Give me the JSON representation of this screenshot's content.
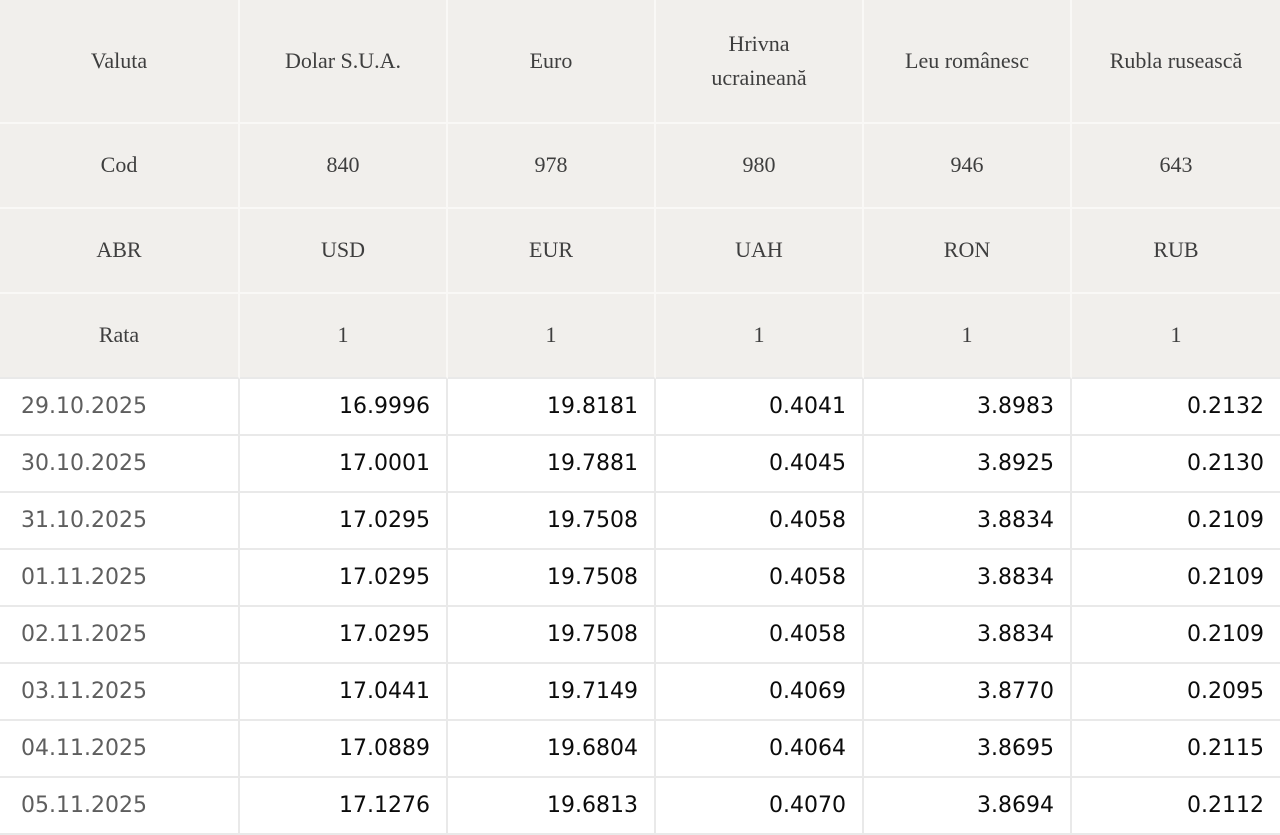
{
  "colors": {
    "page_bg": "#ffffff",
    "header_cell_bg": "#f1efec",
    "header_cell_border": "#f9f8f6",
    "data_cell_border": "#e9e9e9",
    "header_text": "#3e3e3e",
    "date_text": "#5e5e5e",
    "value_text": "#0b0b0b"
  },
  "chart_data": {
    "type": "table",
    "row_labels": {
      "currency": "Valuta",
      "code": "Cod",
      "abbr": "ABR",
      "rate": "Rata"
    },
    "currencies": [
      {
        "name": "Dolar S.U.A.",
        "code": "840",
        "abbr": "USD",
        "rate": "1"
      },
      {
        "name": "Euro",
        "code": "978",
        "abbr": "EUR",
        "rate": "1"
      },
      {
        "name": "Hrivna ucraineană",
        "code": "980",
        "abbr": "UAH",
        "rate": "1"
      },
      {
        "name": "Leu românesc",
        "code": "946",
        "abbr": "RON",
        "rate": "1"
      },
      {
        "name": "Rubla rusească",
        "code": "643",
        "abbr": "RUB",
        "rate": "1"
      }
    ],
    "rows": [
      {
        "date": "29.10.2025",
        "values": [
          "16.9996",
          "19.8181",
          "0.4041",
          "3.8983",
          "0.2132"
        ]
      },
      {
        "date": "30.10.2025",
        "values": [
          "17.0001",
          "19.7881",
          "0.4045",
          "3.8925",
          "0.2130"
        ]
      },
      {
        "date": "31.10.2025",
        "values": [
          "17.0295",
          "19.7508",
          "0.4058",
          "3.8834",
          "0.2109"
        ]
      },
      {
        "date": "01.11.2025",
        "values": [
          "17.0295",
          "19.7508",
          "0.4058",
          "3.8834",
          "0.2109"
        ]
      },
      {
        "date": "02.11.2025",
        "values": [
          "17.0295",
          "19.7508",
          "0.4058",
          "3.8834",
          "0.2109"
        ]
      },
      {
        "date": "03.11.2025",
        "values": [
          "17.0441",
          "19.7149",
          "0.4069",
          "3.8770",
          "0.2095"
        ]
      },
      {
        "date": "04.11.2025",
        "values": [
          "17.0889",
          "19.6804",
          "0.4064",
          "3.8695",
          "0.2115"
        ]
      },
      {
        "date": "05.11.2025",
        "values": [
          "17.1276",
          "19.6813",
          "0.4070",
          "3.8694",
          "0.2112"
        ]
      }
    ]
  }
}
